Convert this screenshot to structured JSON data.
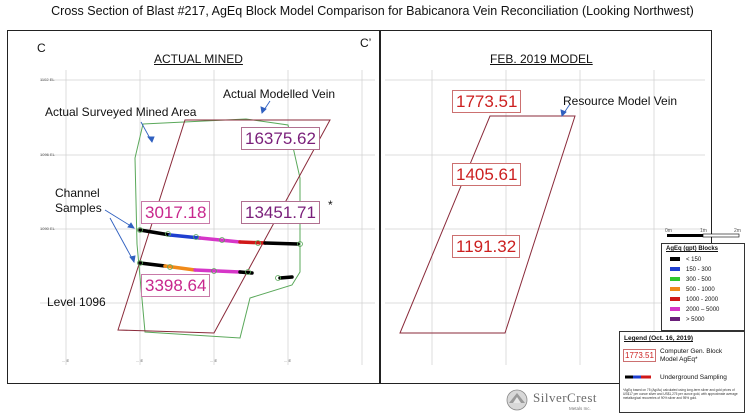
{
  "title": "Cross Section of Blast #217, AgEq Block Model Comparison for Babicanora Vein Reconciliation (Looking Northwest)",
  "left_panel": {
    "corner_left": "C",
    "corner_right": "C’",
    "header": "ACTUAL MINED",
    "labels": {
      "surveyed": "Actual Surveyed Mined Area",
      "modelled": "Actual Modelled Vein",
      "channel": "Channel\nSamples",
      "level": "Level 1096"
    },
    "blocks": [
      {
        "value": "16375.62",
        "color": "#7a1f7a"
      },
      {
        "value": "3017.18",
        "color": "#c8278d"
      },
      {
        "value": "13451.71",
        "color": "#7a1f7a",
        "note": "*"
      },
      {
        "value": "3398.64",
        "color": "#c8278d"
      }
    ],
    "elev_labels": [
      "1102 EL",
      "1096 EL",
      "1090 EL"
    ],
    "easting_labels": [
      "... E",
      "... E",
      "... E",
      "... E"
    ]
  },
  "right_panel": {
    "header": "FEB. 2019 MODEL",
    "label": "Resource Model Vein",
    "blocks": [
      {
        "value": "1773.51",
        "color": "#cc1f1f"
      },
      {
        "value": "1405.61",
        "color": "#cc1f1f"
      },
      {
        "value": "1191.32",
        "color": "#cc1f1f"
      }
    ]
  },
  "scale": {
    "labels": [
      "0m",
      "1m",
      "2m"
    ]
  },
  "blocks_legend": {
    "title": "AgEq (gpt) Blocks",
    "items": [
      {
        "label": "< 150",
        "color": "#000000"
      },
      {
        "label": "150 - 300",
        "color": "#1f3fd0"
      },
      {
        "label": "300 - 500",
        "color": "#2ec72e"
      },
      {
        "label": "500 - 1000",
        "color": "#f08a1a"
      },
      {
        "label": "1000 - 2000",
        "color": "#d01818"
      },
      {
        "label": "2000 – 5000",
        "color": "#d636c8"
      },
      {
        "label": "> 5000",
        "color": "#6a1f7a"
      }
    ]
  },
  "legend": {
    "title": "Legend (Oct. 16, 2019)",
    "sample_value": "1773.51",
    "block_text": "Computer Gen. Block Model AgEq*",
    "sampling_text": "Underground Sampling",
    "footnote": "*AgEq based on 75 (Ag/Au) calculated using long-term silver and gold prices of US$17 per ounce silver and US$1,275 per ounce gold, with approximate average metallurgical recoveries of 90% silver and 95% gold."
  },
  "logo": {
    "name": "SilverCrest",
    "sub": "Metals Inc."
  }
}
